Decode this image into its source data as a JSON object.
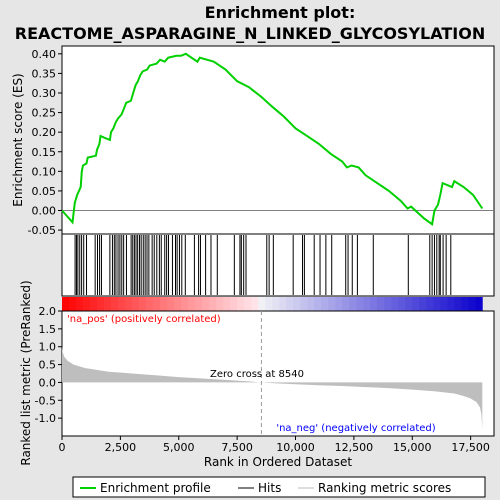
{
  "chart_data": {
    "type": "line",
    "title_line1": "Enrichment plot:",
    "title_line2": "REACTOME_ASPARAGINE_N_LINKED_GLYCOSYLATION",
    "es_panel": {
      "ylabel": "Enrichment score (ES)",
      "ylim": [
        -0.06,
        0.42
      ],
      "yticks": [
        "-0.05",
        "0.00",
        "0.05",
        "0.10",
        "0.15",
        "0.20",
        "0.25",
        "0.30",
        "0.35",
        "0.40"
      ],
      "ytick_values": [
        -0.05,
        0.0,
        0.05,
        0.1,
        0.15,
        0.2,
        0.25,
        0.3,
        0.35,
        0.4
      ],
      "line_color": "#00d000",
      "points": [
        [
          0,
          0.0
        ],
        [
          450,
          -0.03
        ],
        [
          550,
          0.02
        ],
        [
          650,
          0.04
        ],
        [
          800,
          0.06
        ],
        [
          850,
          0.1
        ],
        [
          900,
          0.115
        ],
        [
          1050,
          0.12
        ],
        [
          1100,
          0.135
        ],
        [
          1450,
          0.14
        ],
        [
          1500,
          0.155
        ],
        [
          1600,
          0.17
        ],
        [
          1650,
          0.19
        ],
        [
          2050,
          0.18
        ],
        [
          2100,
          0.2
        ],
        [
          2200,
          0.21
        ],
        [
          2300,
          0.225
        ],
        [
          2400,
          0.235
        ],
        [
          2550,
          0.245
        ],
        [
          2650,
          0.26
        ],
        [
          2750,
          0.275
        ],
        [
          2950,
          0.28
        ],
        [
          3050,
          0.3
        ],
        [
          3150,
          0.32
        ],
        [
          3250,
          0.33
        ],
        [
          3350,
          0.345
        ],
        [
          3450,
          0.355
        ],
        [
          3650,
          0.36
        ],
        [
          3750,
          0.37
        ],
        [
          4050,
          0.375
        ],
        [
          4200,
          0.385
        ],
        [
          4400,
          0.38
        ],
        [
          4550,
          0.39
        ],
        [
          4900,
          0.395
        ],
        [
          5100,
          0.395
        ],
        [
          5300,
          0.4
        ],
        [
          5800,
          0.38
        ],
        [
          5900,
          0.39
        ],
        [
          6500,
          0.38
        ],
        [
          7000,
          0.36
        ],
        [
          7500,
          0.33
        ],
        [
          8000,
          0.315
        ],
        [
          8540,
          0.29
        ],
        [
          9000,
          0.265
        ],
        [
          9500,
          0.24
        ],
        [
          10000,
          0.21
        ],
        [
          10500,
          0.19
        ],
        [
          11000,
          0.17
        ],
        [
          11500,
          0.145
        ],
        [
          12000,
          0.125
        ],
        [
          12200,
          0.11
        ],
        [
          12400,
          0.115
        ],
        [
          12700,
          0.11
        ],
        [
          13000,
          0.09
        ],
        [
          13500,
          0.07
        ],
        [
          14000,
          0.05
        ],
        [
          14500,
          0.025
        ],
        [
          14800,
          0.005
        ],
        [
          14950,
          0.01
        ],
        [
          15500,
          -0.02
        ],
        [
          15850,
          -0.035
        ],
        [
          15950,
          0.0
        ],
        [
          16100,
          0.015
        ],
        [
          16200,
          0.04
        ],
        [
          16300,
          0.07
        ],
        [
          16700,
          0.06
        ],
        [
          16800,
          0.075
        ],
        [
          17200,
          0.06
        ],
        [
          17600,
          0.04
        ],
        [
          18000,
          0.005
        ]
      ]
    },
    "hits_panel": {
      "positions": [
        560,
        620,
        680,
        760,
        840,
        930,
        1050,
        1420,
        1520,
        1610,
        1690,
        2050,
        2160,
        2240,
        2310,
        2400,
        2480,
        2560,
        2640,
        2760,
        2960,
        3030,
        3100,
        3170,
        3240,
        3320,
        3390,
        3480,
        3560,
        3640,
        3720,
        3860,
        3950,
        4060,
        4170,
        4250,
        4400,
        4480,
        4560,
        4730,
        4860,
        4930,
        5030,
        5130,
        5280,
        5670,
        5850,
        5930,
        6150,
        6380,
        6650,
        7380,
        7620,
        7680,
        7780,
        7880,
        8770,
        8870,
        9050,
        9900,
        10300,
        10380,
        10800,
        11050,
        11300,
        11550,
        12150,
        12250,
        12430,
        12650,
        13330,
        14830,
        15750,
        15850,
        15950,
        16050,
        16150,
        16200,
        16320,
        16450,
        16650
      ]
    },
    "metric_panel": {
      "ylabel": "Ranked list metric (PreRanked)",
      "ylim": [
        -1.5,
        2.0
      ],
      "yticks": [
        "-1.0",
        "-0.5",
        "0.0",
        "0.5",
        "1.0",
        "1.5",
        "2.0"
      ],
      "ytick_values": [
        -1.0,
        -0.5,
        0.0,
        0.5,
        1.0,
        1.5,
        2.0
      ],
      "fill_color": "#bebebe",
      "points": [
        [
          0,
          1.0
        ],
        [
          30,
          0.85
        ],
        [
          100,
          0.72
        ],
        [
          250,
          0.6
        ],
        [
          500,
          0.5
        ],
        [
          1000,
          0.4
        ],
        [
          2000,
          0.3
        ],
        [
          3000,
          0.25
        ],
        [
          4000,
          0.2
        ],
        [
          5000,
          0.15
        ],
        [
          6000,
          0.11
        ],
        [
          7000,
          0.07
        ],
        [
          8000,
          0.03
        ],
        [
          8540,
          0.0
        ],
        [
          9000,
          -0.02
        ],
        [
          10000,
          -0.05
        ],
        [
          11000,
          -0.08
        ],
        [
          12000,
          -0.1
        ],
        [
          13000,
          -0.13
        ],
        [
          14000,
          -0.16
        ],
        [
          15000,
          -0.2
        ],
        [
          16000,
          -0.25
        ],
        [
          16800,
          -0.31
        ],
        [
          17200,
          -0.38
        ],
        [
          17500,
          -0.45
        ],
        [
          17750,
          -0.55
        ],
        [
          17900,
          -0.7
        ],
        [
          17960,
          -0.9
        ],
        [
          18000,
          -1.3
        ]
      ],
      "pos_label": "'na_pos' (positively correlated)",
      "neg_label": "'na_neg' (negatively correlated)",
      "zero_cross_label": "Zero cross at 8540",
      "zero_cross": 8540
    },
    "xlabel": "Rank in Ordered Dataset",
    "xlim": [
      0,
      18500
    ],
    "xticks": [
      "0",
      "2,500",
      "5,000",
      "7,500",
      "10,000",
      "12,500",
      "15,000",
      "17,500"
    ],
    "xtick_values": [
      0,
      2500,
      5000,
      7500,
      10000,
      12500,
      15000,
      17500
    ],
    "legend": [
      {
        "label": "Enrichment profile",
        "color": "#00d000"
      },
      {
        "label": "Hits",
        "color": "#000000"
      },
      {
        "label": "Ranking metric scores",
        "color": "#bebebe"
      }
    ]
  }
}
